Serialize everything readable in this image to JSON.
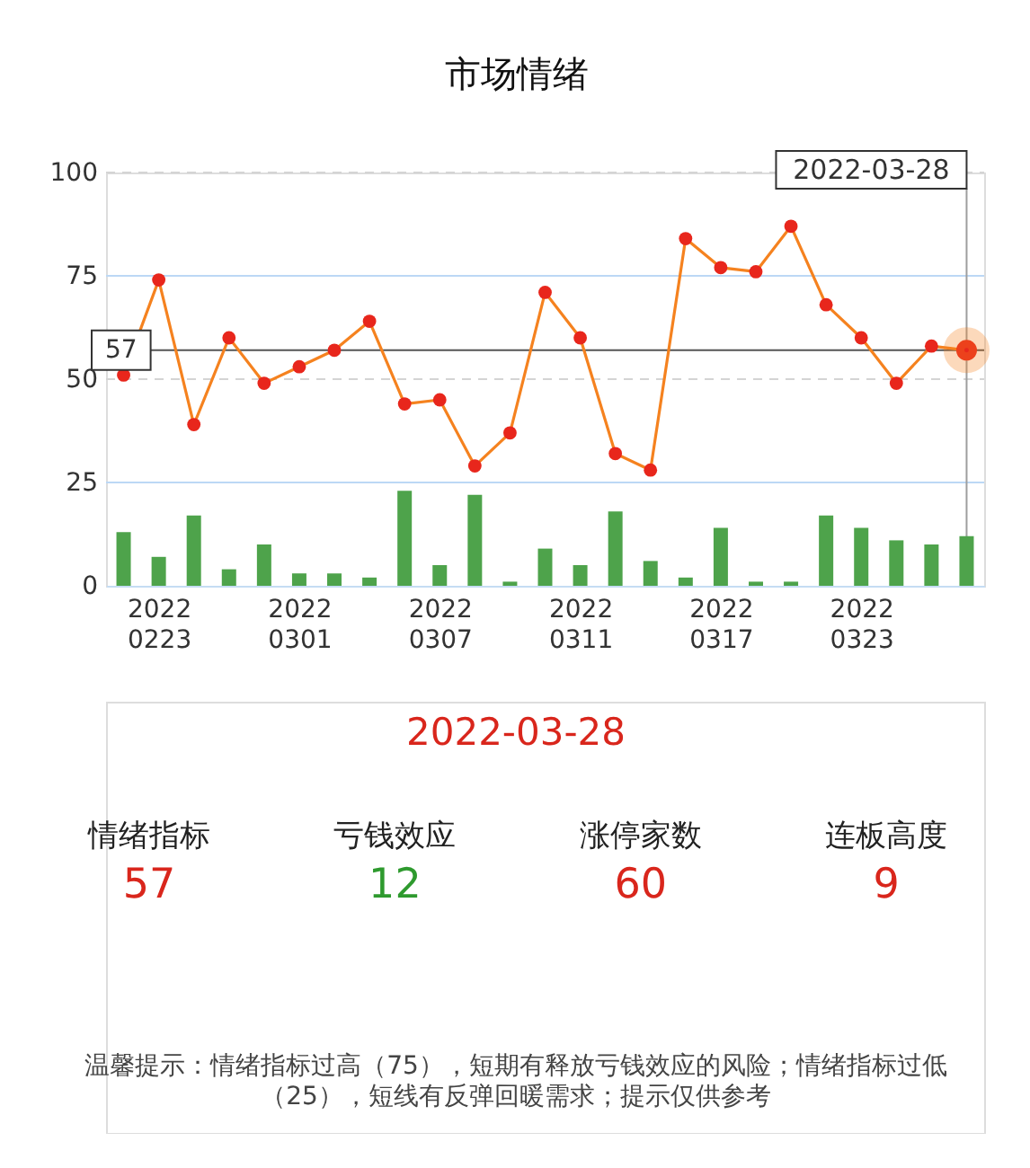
{
  "chart_data": [
    {
      "type": "line",
      "title": "市场情绪",
      "categories": [
        null,
        "2022\n0223",
        null,
        null,
        null,
        "2022\n0301",
        null,
        null,
        null,
        "2022\n0307",
        null,
        null,
        null,
        "2022\n0311",
        null,
        null,
        null,
        "2022\n0317",
        null,
        null,
        null,
        "2022\n0323",
        null,
        null,
        null
      ],
      "ylim": [
        0,
        100
      ],
      "yticks": [
        0,
        25,
        50,
        75,
        100
      ],
      "series": [
        {
          "type": "line",
          "color": "#f5821f",
          "marker": "circle",
          "colors": [
            "#e8261c",
            "#e8261c",
            "#e8261c",
            "#e8261c",
            "#e8261c",
            "#e8261c",
            "#e8261c",
            "#e8261c",
            "#e8261c",
            "#e8261c",
            "#e8261c",
            "#e8261c",
            "#e8261c",
            "#e8261c",
            "#e8261c",
            "#e8261c",
            "#e8261c",
            "#e8261c",
            "#e8261c",
            "#e8261c",
            "#e8261c",
            "#e8261c",
            "#e8261c",
            "#e8261c",
            "#e8261c"
          ],
          "values": [
            51,
            74,
            39,
            60,
            49,
            53,
            57,
            64,
            44,
            45,
            29,
            37,
            71,
            60,
            32,
            28,
            84,
            77,
            76,
            87,
            68,
            60,
            49,
            58,
            57
          ]
        },
        {
          "type": "bar",
          "color": "#4ea34b",
          "values": [
            13,
            7,
            17,
            4,
            10,
            3,
            3,
            2,
            23,
            5,
            22,
            1,
            9,
            5,
            18,
            6,
            2,
            14,
            1,
            1,
            17,
            14,
            11,
            10,
            12
          ]
        }
      ],
      "ref_lines": [
        {
          "axis": "y",
          "value": 75,
          "color": "#bcd8f5"
        },
        {
          "axis": "y",
          "value": 25,
          "color": "#bcd8f5"
        },
        {
          "axis": "y",
          "value": 57,
          "label": "57",
          "color": "#555555"
        },
        {
          "axis": "x",
          "label": "2022-03-28",
          "color": "#9e9e9e"
        },
        {
          "axis": "y",
          "value": 100,
          "color": "#d4d4d4",
          "line_style": "dashed"
        },
        {
          "axis": "y",
          "value": 50,
          "color": "#d4d4d4",
          "line_style": "dashed"
        }
      ]
    },
    {
      "type": "other",
      "title": "2022-03-28",
      "categories": [
        "情绪指标",
        "亏钱效应",
        "涨停家数",
        "连板高度"
      ],
      "values": [
        57,
        12,
        60,
        9
      ],
      "colors": [
        "#d9261c",
        "#2e9a2e",
        "#d9261c",
        "#d9261c"
      ],
      "data_labels": true,
      "annotations": [
        "温馨提示：情绪指标过高（75），短期有释放亏钱效应的风险；情绪指标过低（25），短线有反弹回暖需求；提示仅供参考"
      ]
    }
  ]
}
